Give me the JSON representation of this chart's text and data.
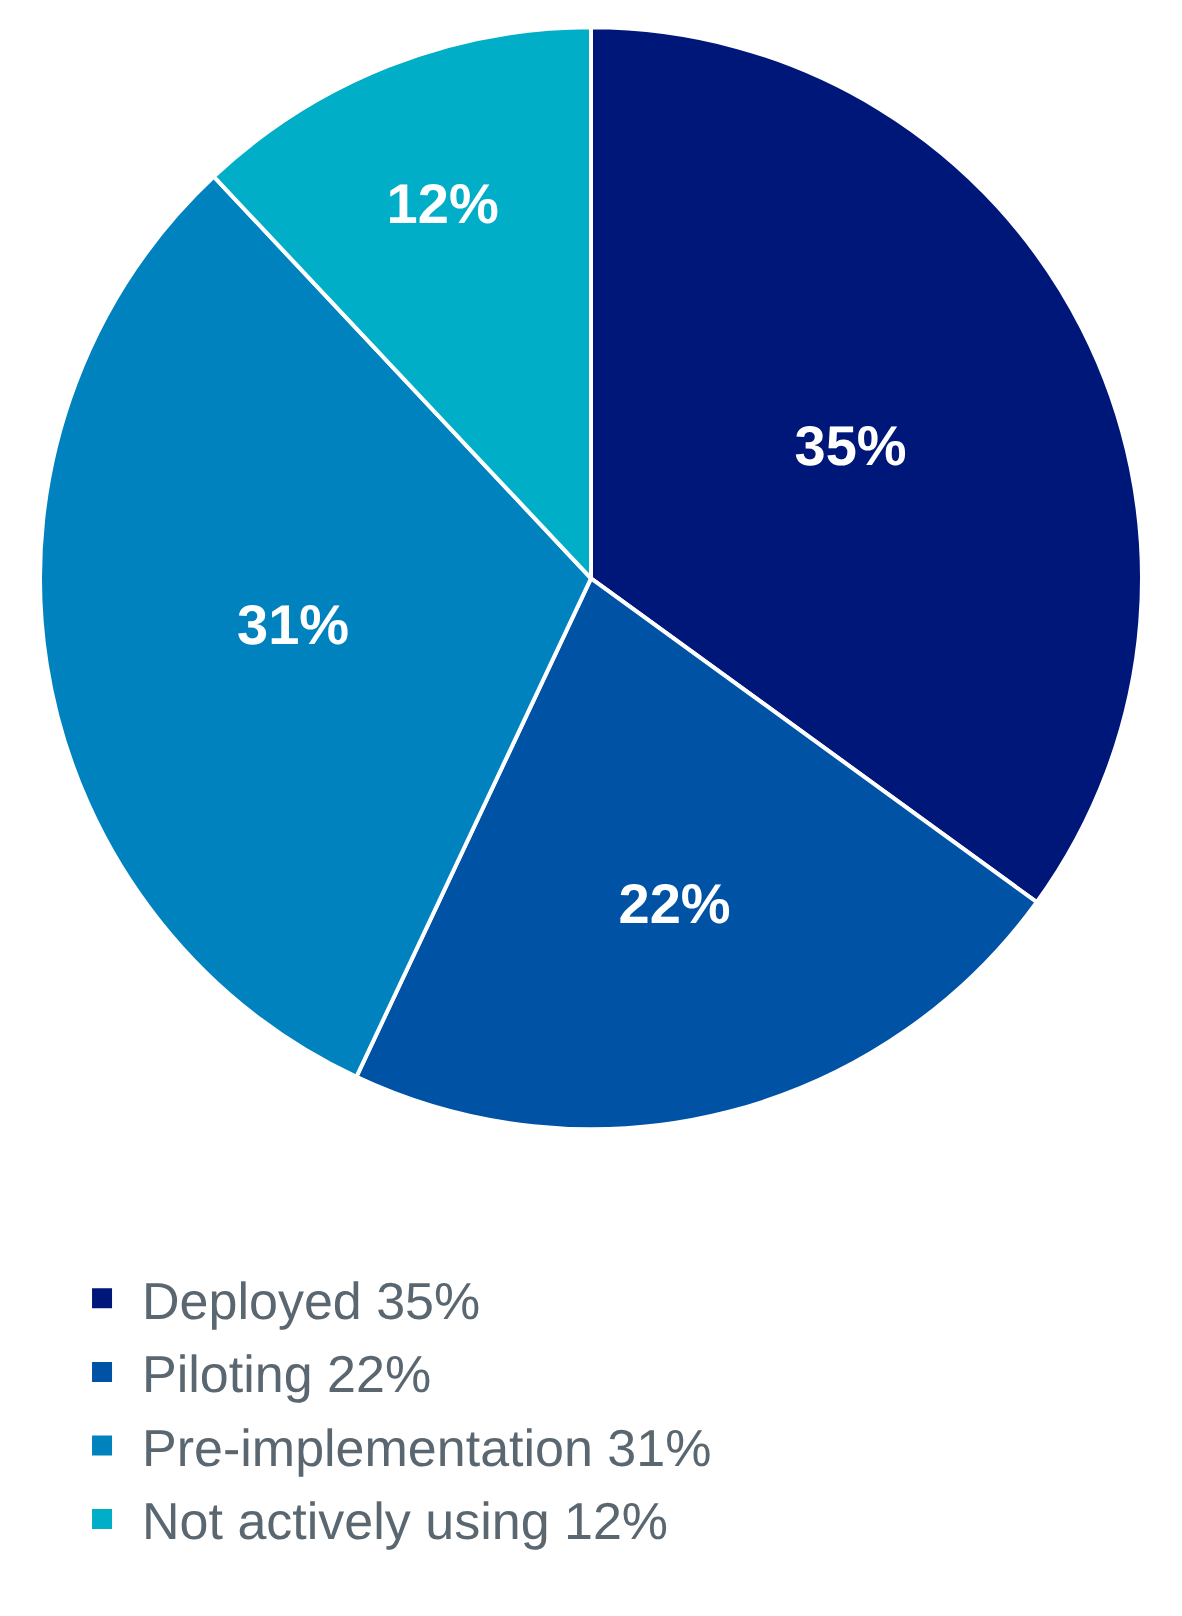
{
  "chart_data": {
    "type": "pie",
    "categories": [
      "Deployed 35%",
      "Piloting 22%",
      "Pre-implementation 31%",
      "Not actively using 12%"
    ],
    "values": [
      35,
      22,
      31,
      12
    ],
    "value_labels": [
      "35%",
      "22%",
      "31%",
      "12%"
    ],
    "colors": [
      "#00177a",
      "#0052a5",
      "#0082be",
      "#00aec7"
    ],
    "legend": "bottom"
  }
}
